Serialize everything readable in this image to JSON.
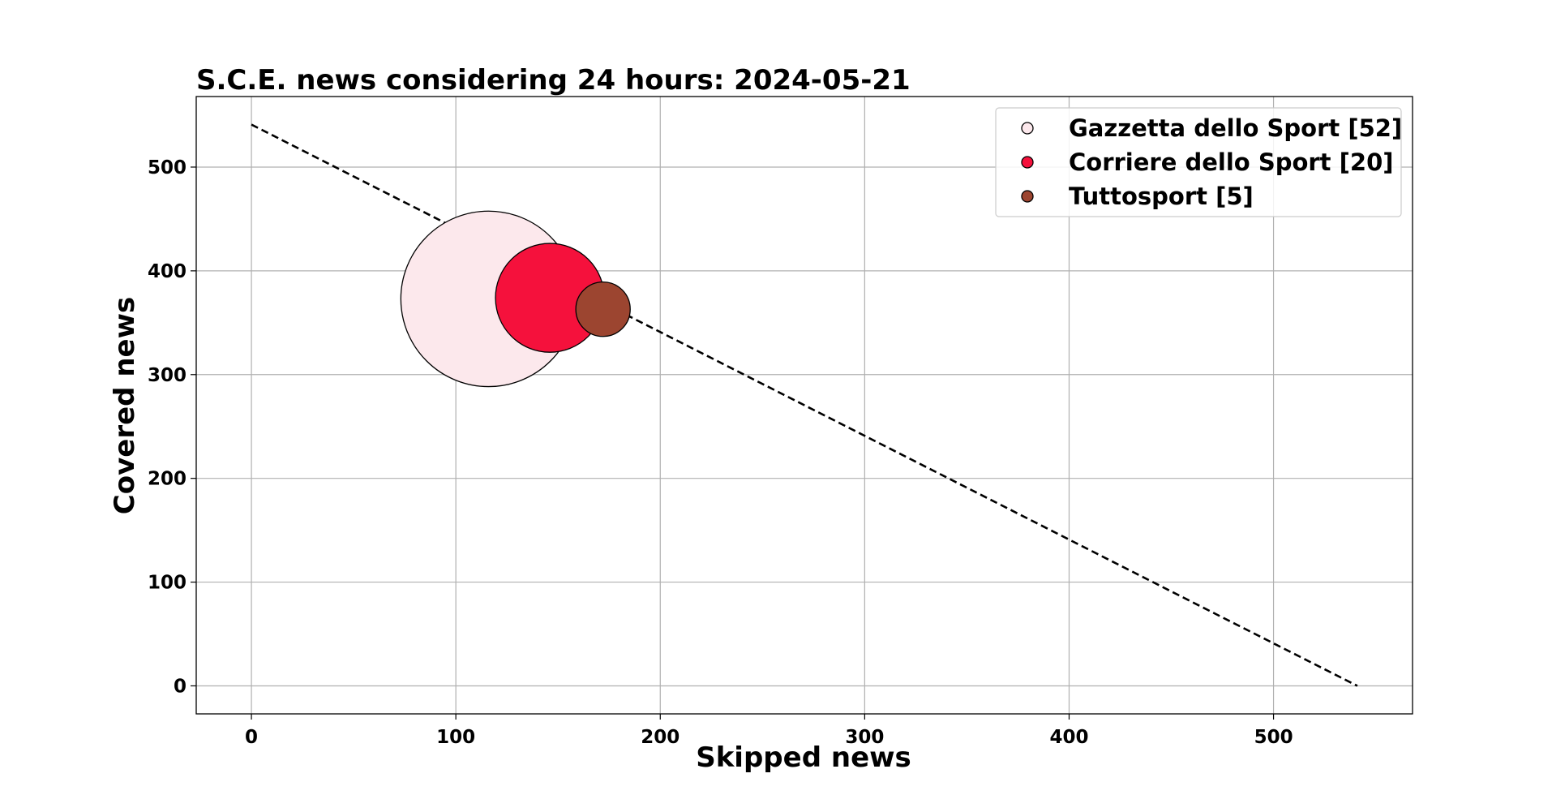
{
  "chart_data": {
    "type": "scatter",
    "title": "S.C.E. news considering 24 hours: 2024-05-21",
    "xlabel": "Skipped news",
    "ylabel": "Covered news",
    "xlim": [
      -27,
      568
    ],
    "ylim": [
      -27,
      568
    ],
    "xticks": [
      0,
      100,
      200,
      300,
      400,
      500
    ],
    "yticks": [
      0,
      100,
      200,
      300,
      400,
      500
    ],
    "grid": true,
    "legend_position": "top-right",
    "reference_line": {
      "style": "dashed",
      "color": "#000000",
      "x": [
        0,
        541
      ],
      "y": [
        541,
        0
      ]
    },
    "series": [
      {
        "name": "Gazzetta dello Sport [52]",
        "x": 116,
        "y": 373,
        "size": 52,
        "color": "#fce8ec"
      },
      {
        "name": "Corriere dello Sport [20]",
        "x": 146,
        "y": 374,
        "size": 20,
        "color": "#f5113c"
      },
      {
        "name": "Tuttosport [5]",
        "x": 172,
        "y": 363,
        "size": 5,
        "color": "#9c4530"
      }
    ]
  }
}
